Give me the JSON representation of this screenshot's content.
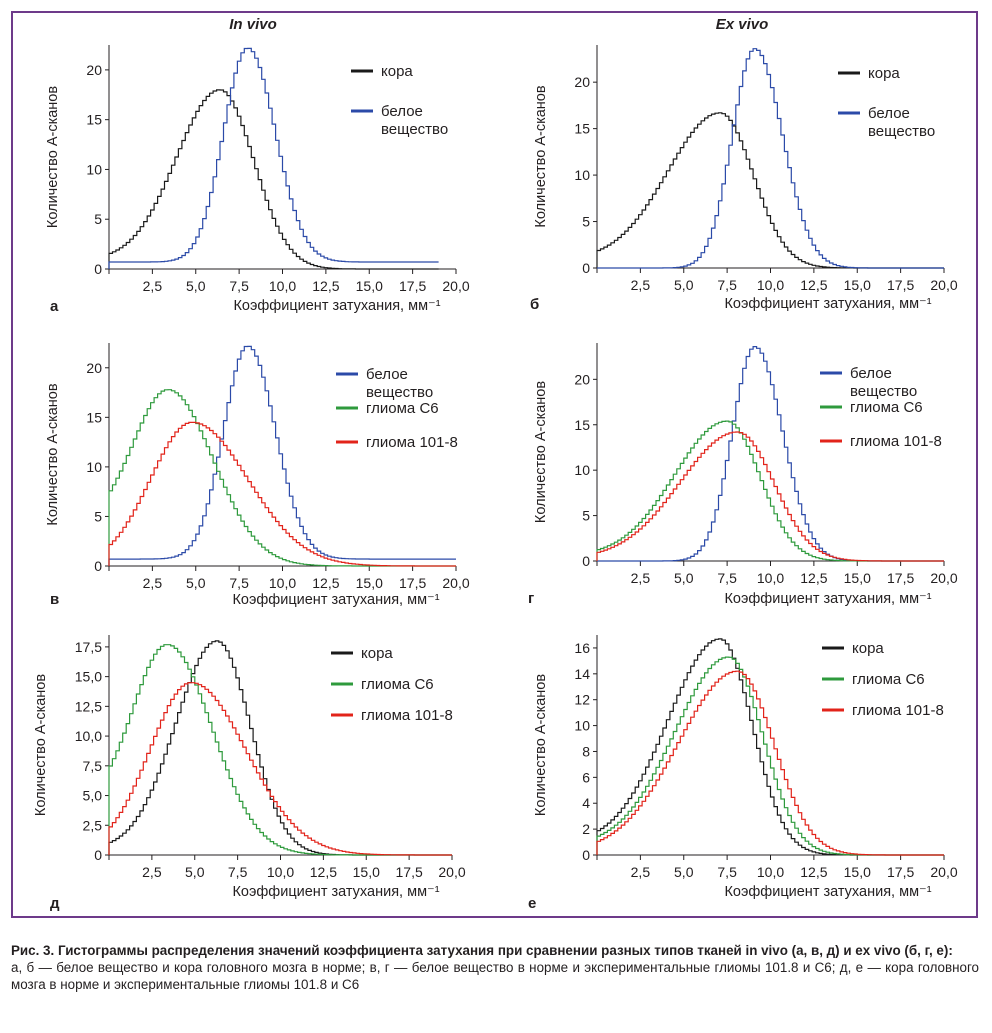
{
  "columns": {
    "left": "In vivo",
    "right": "Ex vivo"
  },
  "caption": {
    "head": "Рис. 3. Гистограммы распределения значений коэффициента затухания при сравнении разных типов тканей in vivo (а, в, д) и ex vivo (б, г, е):",
    "body": "а, б — белое вещество и кора головного мозга в норме; в, г — белое вещество в норме и экспериментальные глиомы 101.8 и С6; д, е — кора головного мозга в норме и экспериментальные глиомы 101.8 и С6"
  },
  "colors": {
    "black": "#1a1a1a",
    "blue": "#2b4aa8",
    "green": "#2e9a3c",
    "red": "#e2231a",
    "frame": "#6d3a8a"
  },
  "chart_data": [
    {
      "panel": "а",
      "type": "line",
      "xlabel": "Коэффициент затухания, мм⁻¹",
      "ylabel": "Количество А-сканов",
      "xlim": [
        0,
        20
      ],
      "ylim": [
        0,
        22.5
      ],
      "xticks": [
        "2,5",
        "5,0",
        "7,5",
        "10,0",
        "12,5",
        "15,0",
        "17,5",
        "20,0"
      ],
      "yticks": [
        "0",
        "5",
        "10",
        "15",
        "20"
      ],
      "ytick_values": [
        0,
        5,
        10,
        15,
        20
      ],
      "series": [
        {
          "name": "кора",
          "color": "black",
          "shape": "asym",
          "peak_x": 6.4,
          "peak_y": 18.0,
          "left_w": 2.5,
          "right_w": 1.95,
          "y0": 1.5,
          "x_end": 19.0
        },
        {
          "name": "белое\nвещество",
          "color": "blue",
          "shape": "gauss",
          "peak_x": 8.0,
          "peak_y": 22.2,
          "left_w": 1.4,
          "right_w": 1.6,
          "y0": 1.5,
          "base": 0.7,
          "x_end": 19.0
        }
      ]
    },
    {
      "panel": "б",
      "type": "line",
      "xlabel": "Коэффициент затухания, мм⁻¹",
      "ylabel": "Количество А-сканов",
      "xlim": [
        0,
        20
      ],
      "ylim": [
        0,
        24
      ],
      "xticks": [
        "2,5",
        "5,0",
        "7,5",
        "10,0",
        "12,5",
        "15,0",
        "17,5",
        "20,0"
      ],
      "yticks": [
        "0",
        "5",
        "10",
        "15",
        "20"
      ],
      "ytick_values": [
        0,
        5,
        10,
        15,
        20
      ],
      "series": [
        {
          "name": "кора",
          "color": "black",
          "shape": "asym",
          "peak_x": 7.1,
          "peak_y": 16.7,
          "left_w": 3.0,
          "right_w": 1.9,
          "y0": 1.8,
          "x_end": 20.0
        },
        {
          "name": "белое\nвещество",
          "color": "blue",
          "shape": "gauss",
          "peak_x": 9.1,
          "peak_y": 23.6,
          "left_w": 1.3,
          "right_w": 1.6,
          "y0": 0.2,
          "base": 0.0,
          "x_end": 20.0
        }
      ]
    },
    {
      "panel": "в",
      "type": "line",
      "xlabel": "Коэффициент затухания, мм⁻¹",
      "ylabel": "Количество А-сканов",
      "xlim": [
        0,
        20
      ],
      "ylim": [
        0,
        22.5
      ],
      "xticks": [
        "2,5",
        "5,0",
        "7,5",
        "10,0",
        "12,5",
        "15,0",
        "17,5",
        "20,0"
      ],
      "yticks": [
        "0",
        "5",
        "10",
        "15",
        "20"
      ],
      "ytick_values": [
        0,
        5,
        10,
        15,
        20
      ],
      "series": [
        {
          "name": "белое\nвещество",
          "color": "blue",
          "shape": "gauss",
          "peak_x": 8.0,
          "peak_y": 22.2,
          "left_w": 1.4,
          "right_w": 1.6,
          "y0": 2.2,
          "base": 0.7,
          "x_end": 20.0
        },
        {
          "name": "глиома С6",
          "color": "green",
          "shape": "asym",
          "peak_x": 3.4,
          "peak_y": 17.8,
          "left_w": 2.0,
          "right_w": 2.6,
          "y0": 7.3,
          "x_end": 20.0
        },
        {
          "name": "глиома 101-8",
          "color": "red",
          "shape": "asym",
          "peak_x": 4.8,
          "peak_y": 14.5,
          "left_w": 2.4,
          "right_w": 3.2,
          "y0": 2.0,
          "x_end": 20.0
        }
      ]
    },
    {
      "panel": "г",
      "type": "line",
      "xlabel": "Коэффициент затухания, мм⁻¹",
      "ylabel": "Количество А-сканов",
      "xlim": [
        0,
        20
      ],
      "ylim": [
        0,
        24
      ],
      "xticks": [
        "2,5",
        "5,0",
        "7,5",
        "10,0",
        "12,5",
        "15,0",
        "17,5",
        "20,0"
      ],
      "yticks": [
        "0",
        "5",
        "10",
        "15",
        "20"
      ],
      "ytick_values": [
        0,
        5,
        10,
        15,
        20
      ],
      "series": [
        {
          "name": "белое\nвещество",
          "color": "blue",
          "shape": "gauss",
          "peak_x": 9.1,
          "peak_y": 23.6,
          "left_w": 1.3,
          "right_w": 1.6,
          "y0": 0.2,
          "base": 0.0,
          "x_end": 20.0
        },
        {
          "name": "глиома С6",
          "color": "green",
          "shape": "asym",
          "peak_x": 7.5,
          "peak_y": 15.4,
          "left_w": 3.0,
          "right_w": 1.9,
          "y0": 1.2,
          "x_end": 20.0
        },
        {
          "name": "глиома 101-8",
          "color": "red",
          "shape": "asym",
          "peak_x": 8.1,
          "peak_y": 14.2,
          "left_w": 3.3,
          "right_w": 2.1,
          "y0": 0.9,
          "x_end": 20.0
        }
      ]
    },
    {
      "panel": "д",
      "type": "line",
      "xlabel": "Коэффициент затухания, мм⁻¹",
      "ylabel": "Количество А-сканов",
      "xlim": [
        0,
        20
      ],
      "ylim": [
        0,
        18.5
      ],
      "xticks": [
        "2,5",
        "5,0",
        "7,5",
        "10,0",
        "12,5",
        "15,0",
        "17,5",
        "20,0"
      ],
      "yticks": [
        "0",
        "2,5",
        "5,0",
        "7,5",
        "10,0",
        "12,5",
        "15,0",
        "17,5"
      ],
      "ytick_values": [
        0,
        2.5,
        5,
        7.5,
        10,
        12.5,
        15,
        17.5
      ],
      "series": [
        {
          "name": "кора",
          "color": "black",
          "shape": "asym",
          "peak_x": 6.3,
          "peak_y": 18.0,
          "left_w": 2.4,
          "right_w": 1.95,
          "y0": 1.0,
          "x_end": 20.0
        },
        {
          "name": "глиома С6",
          "color": "green",
          "shape": "asym",
          "peak_x": 3.4,
          "peak_y": 17.7,
          "left_w": 2.0,
          "right_w": 2.6,
          "y0": 7.2,
          "x_end": 20.0
        },
        {
          "name": "глиома 101-8",
          "color": "red",
          "shape": "asym",
          "peak_x": 4.8,
          "peak_y": 14.5,
          "left_w": 2.4,
          "right_w": 3.2,
          "y0": 2.2,
          "x_end": 20.0
        }
      ]
    },
    {
      "panel": "е",
      "type": "line",
      "xlabel": "Коэффициент затухания, мм⁻¹",
      "ylabel": "Количество А-сканов",
      "xlim": [
        0,
        20
      ],
      "ylim": [
        0,
        17
      ],
      "xticks": [
        "2,5",
        "5,0",
        "7,5",
        "10,0",
        "12,5",
        "15,0",
        "17,5",
        "20,0"
      ],
      "yticks": [
        "0",
        "2",
        "4",
        "6",
        "8",
        "10",
        "12",
        "14",
        "16"
      ],
      "ytick_values": [
        0,
        2,
        4,
        6,
        8,
        10,
        12,
        14,
        16
      ],
      "series": [
        {
          "name": "кора",
          "color": "black",
          "shape": "asym",
          "peak_x": 7.1,
          "peak_y": 16.7,
          "left_w": 3.0,
          "right_w": 1.85,
          "y0": 1.8,
          "x_end": 20.0
        },
        {
          "name": "глиома С6",
          "color": "green",
          "shape": "asym",
          "peak_x": 7.6,
          "peak_y": 15.3,
          "left_w": 3.1,
          "right_w": 1.95,
          "y0": 1.4,
          "x_end": 20.0
        },
        {
          "name": "глиома 101-8",
          "color": "red",
          "shape": "asym",
          "peak_x": 8.1,
          "peak_y": 14.2,
          "left_w": 3.4,
          "right_w": 2.1,
          "y0": 1.0,
          "x_end": 20.0
        }
      ]
    }
  ]
}
